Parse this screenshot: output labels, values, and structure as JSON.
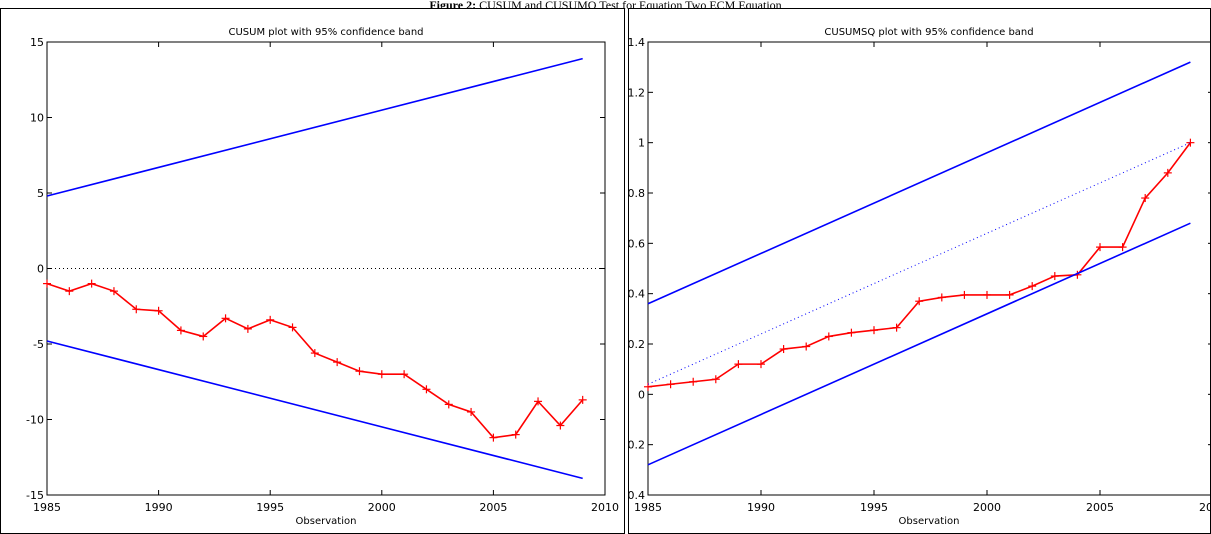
{
  "figure": {
    "caption_bold": "Figure 2:",
    "caption_text": " CUSUM and CUSUMQ Test for Equation Two ECM Equation"
  },
  "chart_data": [
    {
      "type": "line",
      "title": "CUSUM plot with 95% confidence band",
      "xlabel": "Observation",
      "ylabel": "",
      "xlim": [
        1985,
        2010
      ],
      "ylim": [
        -15,
        15
      ],
      "xticks": [
        1985,
        1990,
        1995,
        2000,
        2005,
        2010
      ],
      "yticks": [
        -15,
        -10,
        -5,
        0,
        5,
        10,
        15
      ],
      "tick_labels_x": [
        "1985",
        "1990",
        "1995",
        "2000",
        "2005",
        "2010"
      ],
      "tick_labels_y": [
        "-15",
        "-10",
        "-5",
        "0",
        "5",
        "10",
        "15"
      ],
      "series": [
        {
          "color": "#ff0000",
          "style": "solid-markers",
          "x": [
            1985,
            1986,
            1987,
            1988,
            1989,
            1990,
            1991,
            1992,
            1993,
            1994,
            1995,
            1996,
            1997,
            1998,
            1999,
            2000,
            2001,
            2002,
            2003,
            2004,
            2005,
            2006,
            2007,
            2008,
            2009
          ],
          "y": [
            -1.0,
            -1.5,
            -1.0,
            -1.5,
            -2.7,
            -2.8,
            -4.1,
            -4.5,
            -3.3,
            -4.0,
            -3.4,
            -3.9,
            -5.6,
            -6.2,
            -6.8,
            -7.0,
            -7.0,
            -8.0,
            -9.0,
            -9.5,
            -11.2,
            -11.0,
            -8.8,
            -10.4,
            -8.7
          ]
        },
        {
          "color": "#0000ff",
          "style": "solid",
          "x": [
            1985,
            2009
          ],
          "y": [
            4.8,
            13.9
          ]
        },
        {
          "color": "#0000ff",
          "style": "solid",
          "x": [
            1985,
            2009
          ],
          "y": [
            -4.8,
            -13.9
          ]
        },
        {
          "color": "#000000",
          "style": "dotted",
          "x": [
            1985,
            2010
          ],
          "y": [
            0,
            0
          ]
        }
      ],
      "grid": false
    },
    {
      "type": "line",
      "title": "CUSUMSQ plot with 95% confidence band",
      "xlabel": "Observation",
      "ylabel": "",
      "xlim": [
        1985,
        2010
      ],
      "ylim": [
        -0.4,
        1.4
      ],
      "xticks": [
        1985,
        1990,
        1995,
        2000,
        2005,
        2010
      ],
      "yticks": [
        -0.4,
        -0.2,
        0,
        0.2,
        0.4,
        0.6,
        0.8,
        1,
        1.2,
        1.4
      ],
      "tick_labels_x": [
        "1985",
        "1990",
        "1995",
        "2000",
        "2005",
        "2010"
      ],
      "tick_labels_y": [
        "-0.4",
        "-0.2",
        "0",
        "0.2",
        "0.4",
        "0.6",
        "0.8",
        "1",
        "1.2",
        "1.4"
      ],
      "series": [
        {
          "color": "#ff0000",
          "style": "solid-markers",
          "x": [
            1985,
            1986,
            1987,
            1988,
            1989,
            1990,
            1991,
            1992,
            1993,
            1994,
            1995,
            1996,
            1997,
            1998,
            1999,
            2000,
            2001,
            2002,
            2003,
            2004,
            2005,
            2006,
            2007,
            2008,
            2009
          ],
          "y": [
            0.03,
            0.04,
            0.05,
            0.06,
            0.12,
            0.12,
            0.18,
            0.19,
            0.23,
            0.245,
            0.255,
            0.265,
            0.37,
            0.385,
            0.395,
            0.395,
            0.395,
            0.43,
            0.47,
            0.475,
            0.585,
            0.585,
            0.78,
            0.88,
            1.0
          ]
        },
        {
          "color": "#0000ff",
          "style": "solid",
          "x": [
            1985,
            2009
          ],
          "y": [
            0.36,
            1.32
          ]
        },
        {
          "color": "#0000ff",
          "style": "solid",
          "x": [
            1985,
            2009
          ],
          "y": [
            -0.28,
            0.68
          ]
        },
        {
          "color": "#0000ff",
          "style": "dotted",
          "x": [
            1985,
            2009
          ],
          "y": [
            0.04,
            1.0
          ]
        }
      ],
      "grid": false
    }
  ]
}
